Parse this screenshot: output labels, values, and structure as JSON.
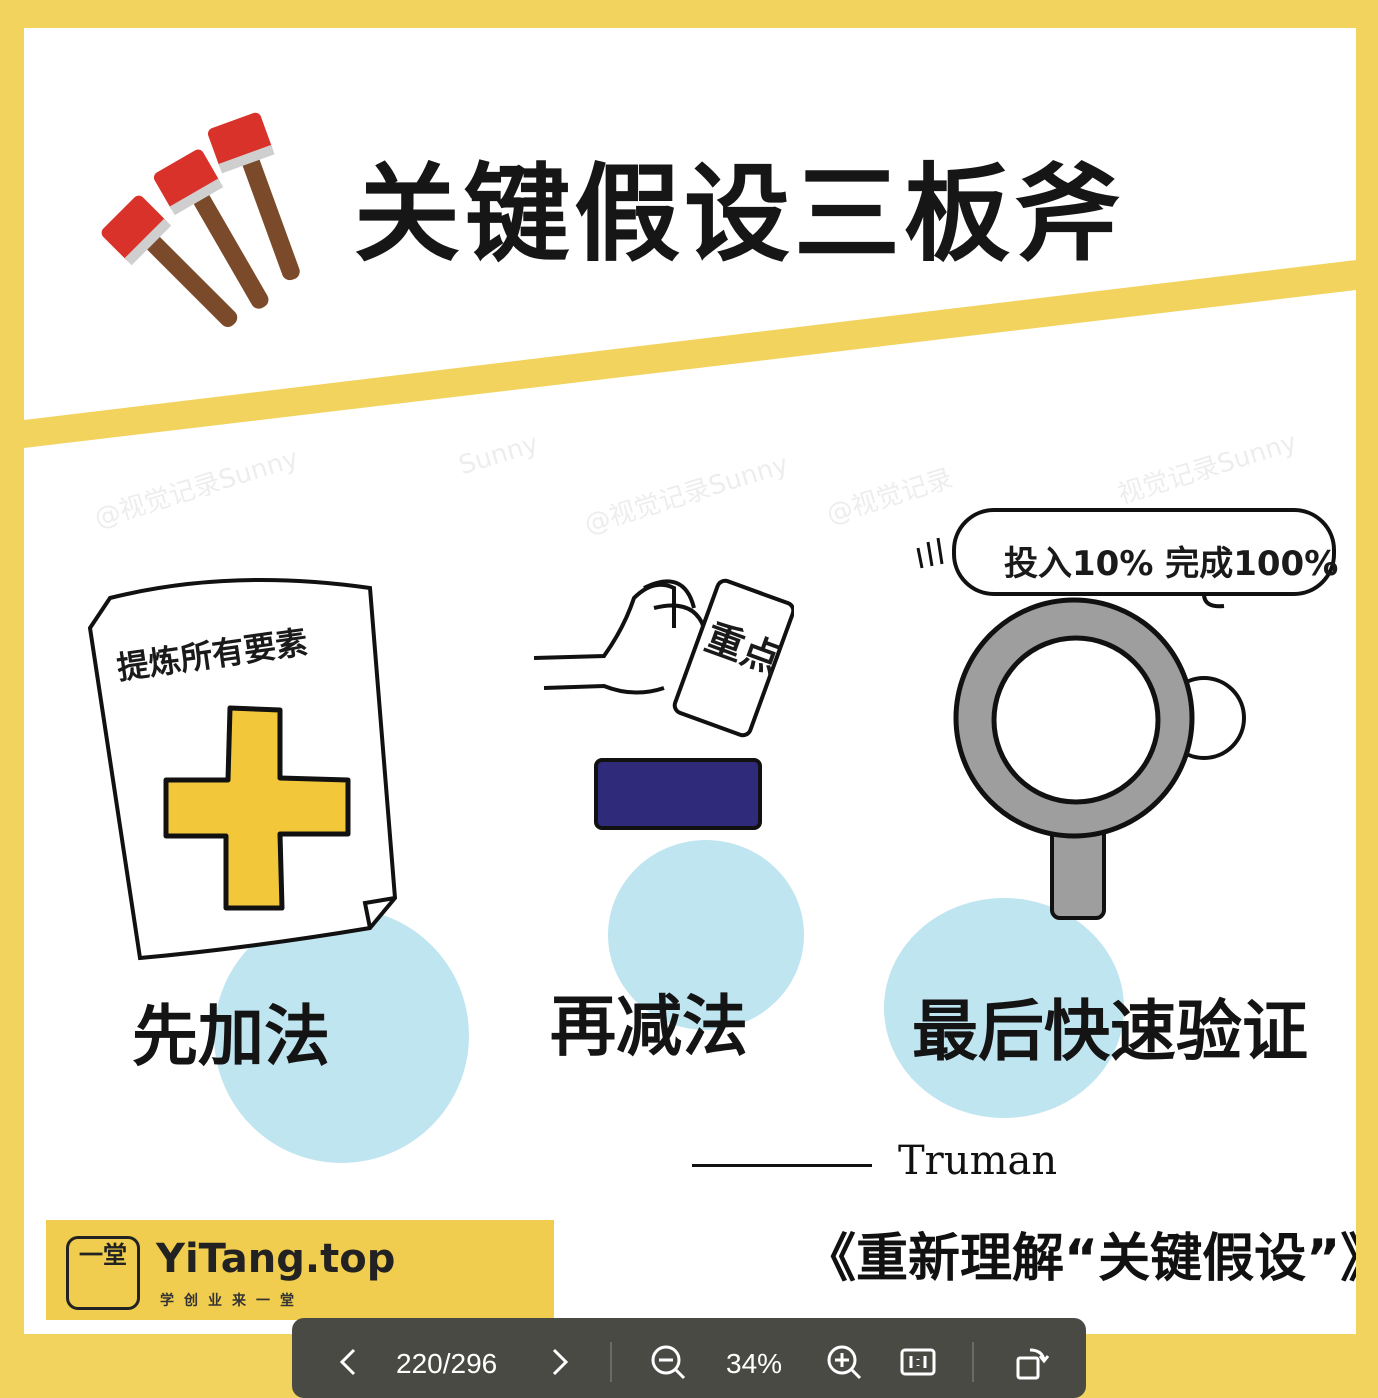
{
  "title": "关键假设三板斧",
  "watermark": [
    "@视觉记录Sunny",
    "Sunny",
    "@视觉记录Sunny",
    "@视觉记录",
    "视觉记录Sunny"
  ],
  "sections": [
    {
      "label": "先加法",
      "note": "提炼所有要素",
      "icon": "plus-icon"
    },
    {
      "label": "再减法",
      "card": "重点",
      "icon": "minus-icon"
    },
    {
      "label": "最后快速验证",
      "bubble": "投入10% 完成100%",
      "icon": "magnifier-icon"
    }
  ],
  "attribution": {
    "author": "Truman",
    "source": "《重新理解“关键假设”》"
  },
  "brand": {
    "name": "YiTang.top",
    "mark": "一堂",
    "tagline": "学创业来一堂"
  },
  "toolbar": {
    "page_indicator": "220/296",
    "zoom": "34%"
  },
  "colors": {
    "frame": "#f2d35e",
    "plus": "#f2c83a",
    "minus": "#2f2a7a",
    "blob": "#bfe5f0",
    "toolbar": "#4a4a44"
  }
}
